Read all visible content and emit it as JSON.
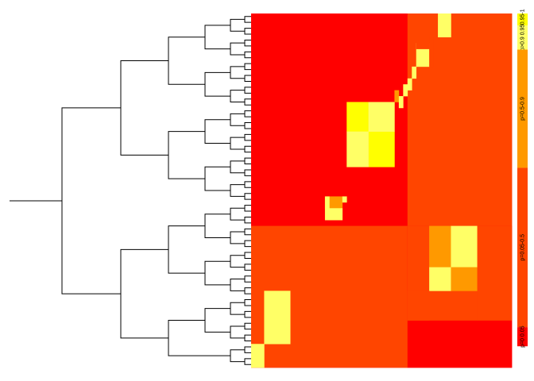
{
  "chart_data": {
    "type": "heatmap",
    "title": "",
    "n_leaves": 60,
    "value_colors": {
      "1": "#FF0000",
      "2": "#FF4500",
      "3": "#FF9900",
      "4": "#FFFF66",
      "5": "#FFFF00"
    },
    "blocks": [
      {
        "rows": [
          0,
          59
        ],
        "cols": [
          0,
          59
        ],
        "value": 1
      },
      {
        "rows": [
          36,
          59
        ],
        "cols": [
          0,
          35
        ],
        "value": 2
      },
      {
        "rows": [
          0,
          35
        ],
        "cols": [
          36,
          59
        ],
        "value": 2
      },
      {
        "rows": [
          36,
          59
        ],
        "cols": [
          36,
          59
        ],
        "value": 1
      },
      {
        "rows": [
          36,
          46
        ],
        "cols": [
          36,
          51
        ],
        "value": 2
      },
      {
        "rows": [
          47,
          51
        ],
        "cols": [
          36,
          51
        ],
        "value": 2
      },
      {
        "rows": [
          36,
          51
        ],
        "cols": [
          52,
          59
        ],
        "value": 2
      },
      {
        "rows": [
          36,
          42
        ],
        "cols": [
          41,
          45
        ],
        "value": 3
      },
      {
        "rows": [
          36,
          42
        ],
        "cols": [
          46,
          51
        ],
        "value": 4
      },
      {
        "rows": [
          43,
          46
        ],
        "cols": [
          41,
          45
        ],
        "value": 4
      },
      {
        "rows": [
          43,
          46
        ],
        "cols": [
          46,
          51
        ],
        "value": 3
      },
      {
        "rows": [
          47,
          51
        ],
        "cols": [
          36,
          40
        ],
        "value": 2
      },
      {
        "rows": [
          47,
          55
        ],
        "cols": [
          3,
          8
        ],
        "value": 4
      },
      {
        "rows": [
          56,
          59
        ],
        "cols": [
          0,
          2
        ],
        "value": 4
      },
      {
        "rows": [
          31,
          32
        ],
        "cols": [
          17,
          20
        ],
        "value": 3
      },
      {
        "rows": [
          31,
          31
        ],
        "cols": [
          21,
          21
        ],
        "value": 4
      },
      {
        "rows": [
          33,
          34
        ],
        "cols": [
          17,
          17
        ],
        "value": 4
      },
      {
        "rows": [
          33,
          34
        ],
        "cols": [
          18,
          20
        ],
        "value": 4
      },
      {
        "rows": [
          31,
          32
        ],
        "cols": [
          17,
          17
        ],
        "value": 4
      },
      {
        "rows": [
          15,
          19
        ],
        "cols": [
          22,
          26
        ],
        "value": 5
      },
      {
        "rows": [
          20,
          25
        ],
        "cols": [
          27,
          32
        ],
        "value": 5
      },
      {
        "rows": [
          15,
          19
        ],
        "cols": [
          27,
          32
        ],
        "value": 4
      },
      {
        "rows": [
          20,
          25
        ],
        "cols": [
          22,
          26
        ],
        "value": 4
      },
      {
        "rows": [
          13,
          14
        ],
        "cols": [
          33,
          33
        ],
        "value": 3
      },
      {
        "rows": [
          14,
          15
        ],
        "cols": [
          34,
          34
        ],
        "value": 4
      },
      {
        "rows": [
          12,
          13
        ],
        "cols": [
          35,
          35
        ],
        "value": 4
      },
      {
        "rows": [
          11,
          12
        ],
        "cols": [
          36,
          36
        ],
        "value": 4
      },
      {
        "rows": [
          9,
          10
        ],
        "cols": [
          37,
          37
        ],
        "value": 4
      },
      {
        "rows": [
          5,
          8
        ],
        "cols": [
          38,
          40
        ],
        "value": 4
      },
      {
        "rows": [
          4,
          5
        ],
        "cols": [
          38,
          40
        ],
        "value": 2
      },
      {
        "rows": [
          4,
          8
        ],
        "cols": [
          41,
          41
        ],
        "value": 2
      },
      {
        "rows": [
          0,
          3
        ],
        "cols": [
          43,
          45
        ],
        "value": 4
      }
    ],
    "legend": {
      "position": "right",
      "entries": [
        {
          "label": "p*0.95-1",
          "color": "#FFFF00",
          "share": 0.034
        },
        {
          "label": "p>0.9 0.95",
          "color": "#FFFF66",
          "share": 0.068
        },
        {
          "label": "p=0.5-0.9",
          "color": "#FF9900",
          "share": 0.334
        },
        {
          "label": "p=0.05-0.5",
          "color": "#FF4500",
          "share": 0.45
        },
        {
          "label": "p=0 0.05",
          "color": "#FF0000",
          "share": 0.054
        }
      ]
    },
    "dendrogram": {
      "orientation": "left",
      "merges": [
        [
          0,
          1
        ],
        [
          2,
          3
        ],
        [
          4,
          5
        ],
        [
          6,
          7
        ],
        [
          8,
          9
        ],
        [
          10,
          11
        ],
        [
          12,
          13
        ],
        [
          14,
          15
        ],
        [
          16,
          17
        ],
        [
          18,
          19
        ],
        [
          20,
          21
        ],
        [
          22,
          23
        ],
        [
          24,
          25
        ],
        [
          26,
          27
        ],
        [
          28,
          29
        ],
        [
          30,
          31
        ],
        [
          32,
          33
        ],
        [
          34,
          35
        ],
        [
          36,
          37
        ],
        [
          38,
          39
        ],
        [
          40,
          41
        ],
        [
          42,
          43
        ],
        [
          44,
          45
        ],
        [
          46,
          47
        ],
        [
          48,
          49
        ],
        [
          50,
          51
        ],
        [
          52,
          53
        ],
        [
          54,
          55
        ],
        [
          56,
          57
        ],
        [
          58,
          59
        ]
      ]
    }
  }
}
